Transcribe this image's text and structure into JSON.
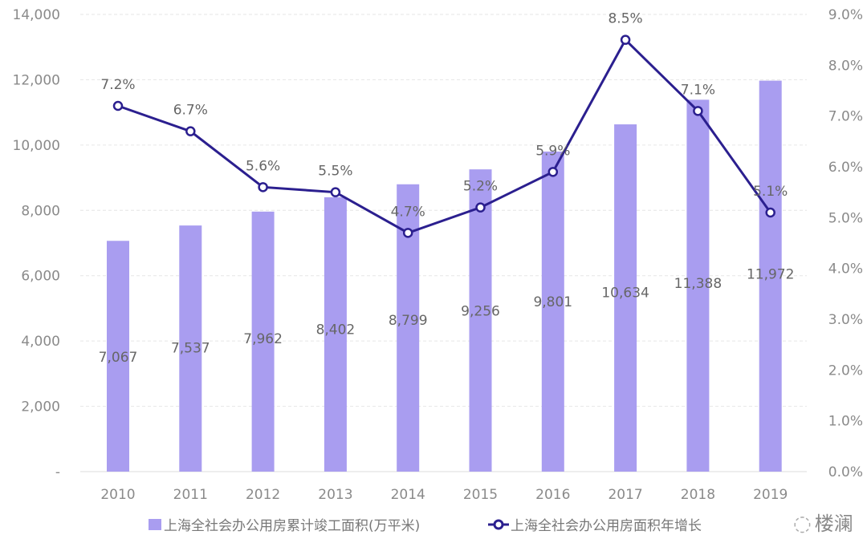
{
  "chart_data": {
    "type": "bar+line",
    "categories": [
      "2010",
      "2011",
      "2012",
      "2013",
      "2014",
      "2015",
      "2016",
      "2017",
      "2018",
      "2019"
    ],
    "series": [
      {
        "name": "上海全社会办公用房累计竣工面积(万平米)",
        "type": "bar",
        "axis": "left",
        "values": [
          7067,
          7537,
          7962,
          8402,
          8799,
          9256,
          9801,
          10634,
          11388,
          11972
        ],
        "labels": [
          "7,067",
          "7,537",
          "7,962",
          "8,402",
          "8,799",
          "9,256",
          "9,801",
          "10,634",
          "11,388",
          "11,972"
        ]
      },
      {
        "name": "上海全社会办公用房面积年增长",
        "type": "line",
        "axis": "right",
        "values": [
          7.2,
          6.7,
          5.6,
          5.5,
          4.7,
          5.2,
          5.9,
          8.5,
          7.1,
          5.1
        ],
        "labels": [
          "7.2%",
          "6.7%",
          "5.6%",
          "5.5%",
          "4.7%",
          "5.2%",
          "5.9%",
          "8.5%",
          "7.1%",
          "5.1%"
        ]
      }
    ],
    "ylim_left": [
      0,
      14000
    ],
    "ylim_right": [
      0,
      9
    ],
    "left_ticks": [
      "-",
      "2,000",
      "4,000",
      "6,000",
      "8,000",
      "10,000",
      "12,000",
      "14,000"
    ],
    "right_ticks": [
      "0.0%",
      "1.0%",
      "2.0%",
      "3.0%",
      "4.0%",
      "5.0%",
      "6.0%",
      "7.0%",
      "8.0%",
      "9.0%"
    ],
    "grid": true,
    "legend_position": "bottom",
    "colors": {
      "bar": "#a99df0",
      "line": "#2b1f8f"
    }
  },
  "watermark": "楼澜"
}
